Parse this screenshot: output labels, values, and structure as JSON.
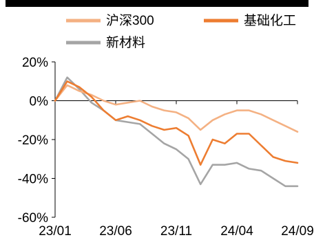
{
  "chart_data": {
    "type": "line",
    "title": "",
    "xlabel": "",
    "ylabel": "",
    "x_tick_labels": [
      "23/01",
      "23/06",
      "23/11",
      "24/04",
      "24/09"
    ],
    "y_tick_labels": [
      "20%",
      "0%",
      "-20%",
      "-40%",
      "-60%"
    ],
    "y_ticks": [
      20,
      0,
      -20,
      -40,
      -60
    ],
    "ylim": [
      -60,
      20
    ],
    "x": [
      "23/01",
      "23/02",
      "23/03",
      "23/04",
      "23/05",
      "23/06",
      "23/07",
      "23/08",
      "23/09",
      "23/10",
      "23/11",
      "23/12",
      "24/01",
      "24/02",
      "24/03",
      "24/04",
      "24/05",
      "24/06",
      "24/07",
      "24/08",
      "24/09"
    ],
    "legend_placement": "top",
    "series": [
      {
        "name": "沪深300",
        "color": "#F4B183",
        "values": [
          0,
          8,
          5,
          3,
          0,
          -2,
          -1,
          0,
          -3,
          -5,
          -6,
          -9,
          -15,
          -10,
          -7,
          -5,
          -5,
          -7,
          -10,
          -13,
          -16
        ]
      },
      {
        "name": "基础化工",
        "color": "#ED7D31",
        "values": [
          0,
          10,
          7,
          2,
          -5,
          -10,
          -8,
          -10,
          -13,
          -15,
          -14,
          -18,
          -33,
          -20,
          -22,
          -17,
          -17,
          -23,
          -29,
          -31,
          -32
        ]
      },
      {
        "name": "新材料",
        "color": "#A5A5A5",
        "values": [
          0,
          12,
          6,
          -1,
          -5,
          -10,
          -11,
          -12,
          -17,
          -22,
          -25,
          -30,
          -43,
          -33,
          -33,
          -32,
          -35,
          -36,
          -40,
          -44,
          -44
        ]
      }
    ]
  }
}
